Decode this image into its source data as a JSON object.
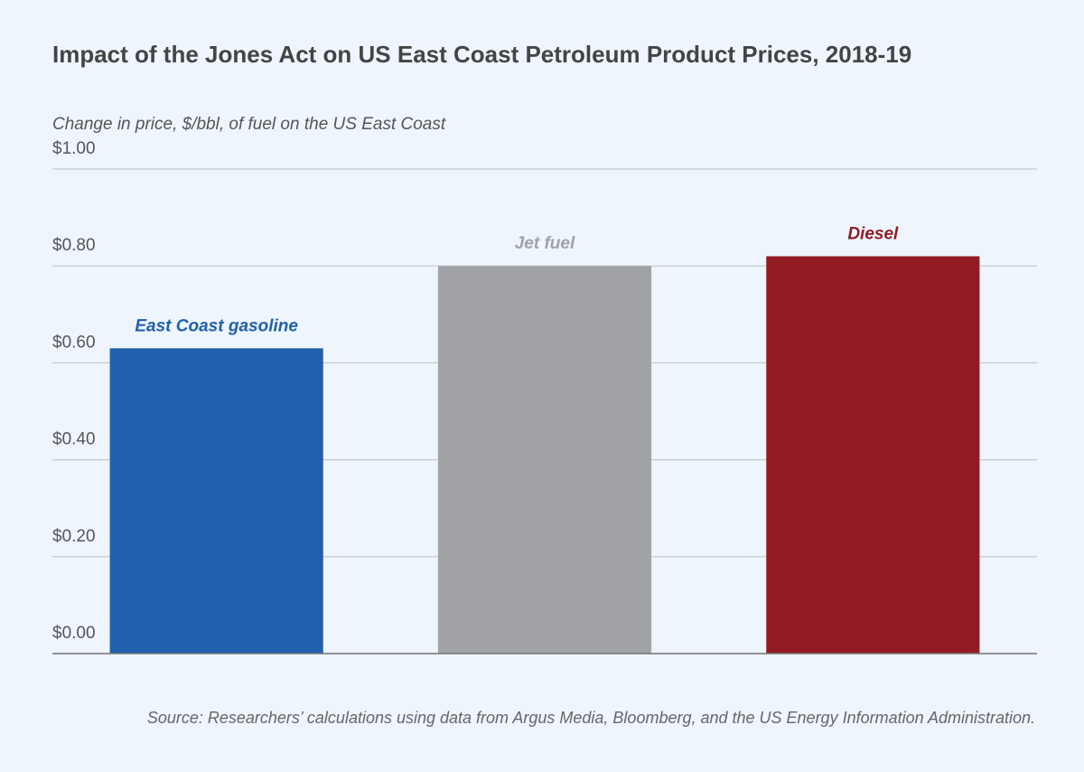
{
  "chart_data": {
    "type": "bar",
    "title": "Impact of the Jones Act on US East Coast Petroleum Product Prices, 2018-19",
    "y_axis_label": "Change in price, $/bbl, of fuel on the US East Coast",
    "source": "Source: Researchers’ calculations using data from Argus Media, Bloomberg, and the US Energy Information Administration.",
    "categories": [
      "East Coast gasoline",
      "Jet fuel",
      "Diesel"
    ],
    "values": [
      0.63,
      0.8,
      0.82
    ],
    "colors": [
      "#2160ad",
      "#a0a2a6",
      "#921c24"
    ],
    "ylim": [
      0,
      1
    ],
    "yticks": [
      {
        "value": 0,
        "label": "$0.00"
      },
      {
        "value": 0.2,
        "label": "$0.20"
      },
      {
        "value": 0.4,
        "label": "$0.40"
      },
      {
        "value": 0.6,
        "label": "$0.60"
      },
      {
        "value": 0.8,
        "label": "$0.80"
      },
      {
        "value": 1,
        "label": "$1.00"
      }
    ],
    "grid": true
  }
}
